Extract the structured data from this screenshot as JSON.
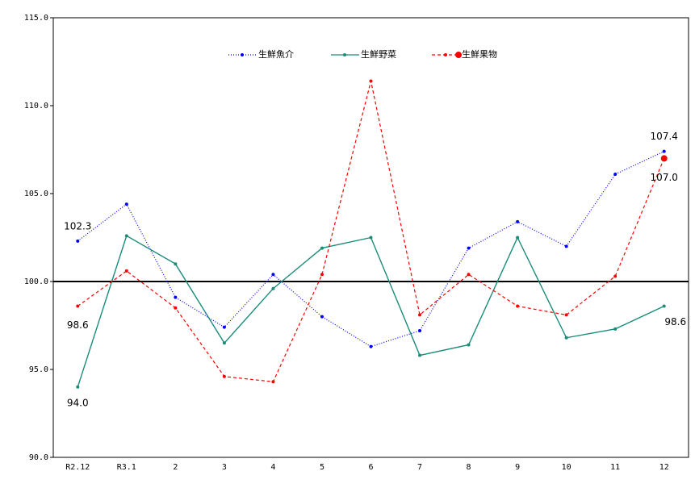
{
  "chart_data": {
    "type": "line",
    "categories": [
      "R2.12",
      "R3.1",
      "2",
      "3",
      "4",
      "5",
      "6",
      "7",
      "8",
      "9",
      "10",
      "11",
      "12"
    ],
    "ylim": [
      90,
      115
    ],
    "yticks": [
      {
        "value": 90,
        "label": "90.0"
      },
      {
        "value": 95,
        "label": "95.0"
      },
      {
        "value": 100,
        "label": "100.0"
      },
      {
        "value": 105,
        "label": "105.0"
      },
      {
        "value": 110,
        "label": "110.0"
      },
      {
        "value": 115,
        "label": "115.0"
      }
    ],
    "reference_line": 100,
    "series": [
      {
        "name": "生鮮魚介",
        "color": "#0000ff",
        "values": [
          102.3,
          104.4,
          99.1,
          97.4,
          100.4,
          98.0,
          96.3,
          97.2,
          101.9,
          103.4,
          102.0,
          106.1,
          107.4
        ],
        "value_labels": [
          "102.3",
          null,
          null,
          null,
          null,
          null,
          null,
          null,
          null,
          null,
          null,
          null,
          "107.4"
        ]
      },
      {
        "name": "生鮮野菜",
        "color": "#1a8c78",
        "values": [
          94.0,
          102.6,
          101.0,
          96.5,
          99.6,
          101.9,
          102.5,
          95.8,
          96.4,
          102.5,
          96.8,
          97.3,
          98.6
        ],
        "value_labels": [
          "94.0",
          null,
          null,
          null,
          null,
          null,
          null,
          null,
          null,
          null,
          null,
          null,
          "98.6"
        ]
      },
      {
        "name": "生鮮果物",
        "color": "#ff0000",
        "values": [
          98.6,
          100.6,
          98.5,
          94.6,
          94.3,
          100.4,
          111.4,
          98.1,
          100.4,
          98.6,
          98.1,
          100.3,
          107.0
        ],
        "value_labels": [
          "98.6",
          null,
          null,
          null,
          null,
          null,
          null,
          null,
          null,
          null,
          null,
          null,
          "107.0"
        ]
      }
    ]
  }
}
